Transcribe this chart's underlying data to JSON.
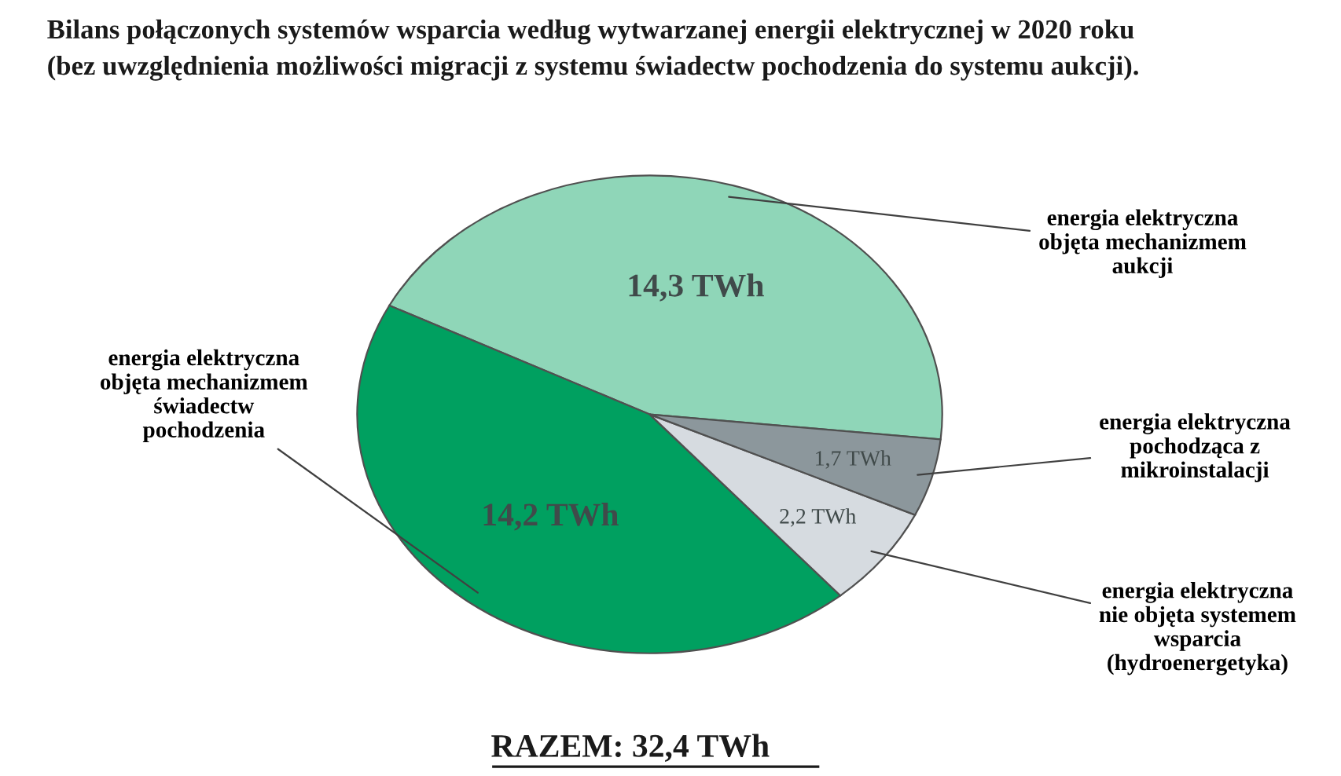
{
  "chart_data": {
    "type": "pie",
    "title": "Bilans połączonych systemów wsparcia według wytwarzanej energii elektrycznej w 2020 roku\n(bez uwzględnienia możliwości migracji z systemu świadectw pochodzenia do systemu aukcji).",
    "categories": [
      "energia elektryczna\nobjęta mechanizmem\naukcji",
      "energia elektryczna\nobjęta mechanizmem\nświadectw\npochodzenia",
      "energia elektryczna\nnie objęta systemem\nwsparcia\n(hydroenergetyka)",
      "energia elektryczna\npochodząca z\nmikroinstalacji"
    ],
    "values": [
      14.3,
      14.2,
      2.2,
      1.7
    ],
    "value_labels": [
      "14,3 TWh",
      "14,2 TWh",
      "2,2 TWh",
      "1,7 TWh"
    ],
    "colors": [
      "#8fd6b8",
      "#00a060",
      "#d6dbe0",
      "#8c979c"
    ],
    "annotations": [
      "RAZEM: 32,4 TWh"
    ]
  }
}
